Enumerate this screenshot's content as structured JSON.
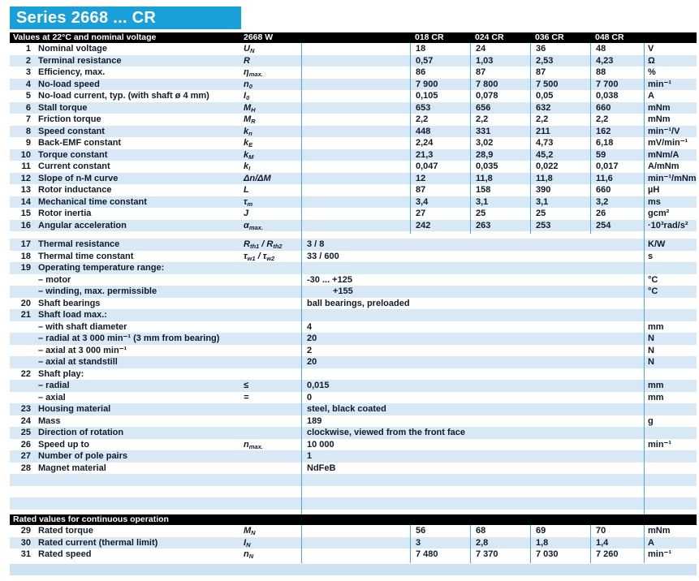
{
  "title": "Series 2668 ... CR",
  "colors": {
    "accent_blue": "#1aa0d8",
    "row_shade_blue": "#d9e8f5",
    "separator_line_blue": "#4aa9d9",
    "section_bar_black": "#000000"
  },
  "header": {
    "label": "Values at 22°C and nominal voltage",
    "model": "2668 W",
    "columns": [
      "018 CR",
      "024 CR",
      "036 CR",
      "048 CR"
    ]
  },
  "rows_electrical": [
    {
      "num": "1",
      "label": "Nominal voltage",
      "symbol": [
        {
          "t": "U"
        },
        {
          "t": "N",
          "sub": true
        }
      ],
      "values": [
        "18",
        "24",
        "36",
        "48"
      ],
      "unit": "V"
    },
    {
      "num": "2",
      "label": "Terminal resistance",
      "symbol": [
        {
          "t": "R"
        }
      ],
      "values": [
        "0,57",
        "1,03",
        "2,53",
        "4,23"
      ],
      "unit": "Ω"
    },
    {
      "num": "3",
      "label": "Efficiency, max.",
      "symbol": [
        {
          "t": "η"
        },
        {
          "t": "max.",
          "sub": true
        }
      ],
      "values": [
        "86",
        "87",
        "87",
        "88"
      ],
      "unit": "%"
    },
    {
      "num": "4",
      "label": "No-load speed",
      "symbol": [
        {
          "t": "n"
        },
        {
          "t": "0",
          "sub": true
        }
      ],
      "values": [
        "7 900",
        "7 800",
        "7 500",
        "7 700"
      ],
      "unit": "min⁻¹"
    },
    {
      "num": "5",
      "label": "No-load current, typ. (with shaft ø 4 mm)",
      "symbol": [
        {
          "t": "I"
        },
        {
          "t": "0",
          "sub": true
        }
      ],
      "values": [
        "0,105",
        "0,078",
        "0,05",
        "0,038"
      ],
      "unit": "A"
    },
    {
      "num": "6",
      "label": "Stall torque",
      "symbol": [
        {
          "t": "M"
        },
        {
          "t": "H",
          "sub": true
        }
      ],
      "values": [
        "653",
        "656",
        "632",
        "660"
      ],
      "unit": "mNm"
    },
    {
      "num": "7",
      "label": "Friction torque",
      "symbol": [
        {
          "t": "M"
        },
        {
          "t": "R",
          "sub": true
        }
      ],
      "values": [
        "2,2",
        "2,2",
        "2,2",
        "2,2"
      ],
      "unit": "mNm"
    },
    {
      "num": "8",
      "label": "Speed constant",
      "symbol": [
        {
          "t": "k"
        },
        {
          "t": "n",
          "sub": true
        }
      ],
      "values": [
        "448",
        "331",
        "211",
        "162"
      ],
      "unit": "min⁻¹/V"
    },
    {
      "num": "9",
      "label": "Back-EMF constant",
      "symbol": [
        {
          "t": "k"
        },
        {
          "t": "E",
          "sub": true
        }
      ],
      "values": [
        "2,24",
        "3,02",
        "4,73",
        "6,18"
      ],
      "unit": "mV/min⁻¹"
    },
    {
      "num": "10",
      "label": "Torque constant",
      "symbol": [
        {
          "t": "k"
        },
        {
          "t": "M",
          "sub": true
        }
      ],
      "values": [
        "21,3",
        "28,9",
        "45,2",
        "59"
      ],
      "unit": "mNm/A"
    },
    {
      "num": "11",
      "label": "Current constant",
      "symbol": [
        {
          "t": "k"
        },
        {
          "t": "I",
          "sub": true
        }
      ],
      "values": [
        "0,047",
        "0,035",
        "0,022",
        "0,017"
      ],
      "unit": "A/mNm"
    },
    {
      "num": "12",
      "label": "Slope of n-M curve",
      "symbol": [
        {
          "t": "Δn/ΔM"
        }
      ],
      "values": [
        "12",
        "11,8",
        "11,8",
        "11,6"
      ],
      "unit": "min⁻¹/mNm"
    },
    {
      "num": "13",
      "label": "Rotor inductance",
      "symbol": [
        {
          "t": "L"
        }
      ],
      "values": [
        "87",
        "158",
        "390",
        "660"
      ],
      "unit": "µH"
    },
    {
      "num": "14",
      "label": "Mechanical time constant",
      "symbol": [
        {
          "t": "τ"
        },
        {
          "t": "m",
          "sub": true
        }
      ],
      "values": [
        "3,4",
        "3,1",
        "3,1",
        "3,2"
      ],
      "unit": "ms"
    },
    {
      "num": "15",
      "label": "Rotor inertia",
      "symbol": [
        {
          "t": "J"
        }
      ],
      "values": [
        "27",
        "25",
        "25",
        "26"
      ],
      "unit": "gcm²"
    },
    {
      "num": "16",
      "label": "Angular acceleration",
      "symbol": [
        {
          "t": "α"
        },
        {
          "t": "max.",
          "sub": true
        }
      ],
      "values": [
        "242",
        "263",
        "253",
        "254"
      ],
      "unit": "·10³rad/s²"
    }
  ],
  "rows_general": [
    {
      "num": "17",
      "label": "Thermal resistance",
      "symbol": [
        {
          "t": "R"
        },
        {
          "t": "th1",
          "sub": true
        },
        {
          "t": " / "
        },
        {
          "t": "R"
        },
        {
          "t": "th2",
          "sub": true
        }
      ],
      "value": "3 / 8",
      "unit": "K/W"
    },
    {
      "num": "18",
      "label": "Thermal time constant",
      "symbol": [
        {
          "t": "τ"
        },
        {
          "t": "w1",
          "sub": true
        },
        {
          "t": " / "
        },
        {
          "t": "τ"
        },
        {
          "t": "w2",
          "sub": true
        }
      ],
      "value": "33 / 600",
      "unit": "s"
    },
    {
      "num": "19",
      "label": "Operating temperature range:",
      "value": "",
      "unit": ""
    },
    {
      "num": "",
      "label": "– motor",
      "value": "-30 ... +125",
      "unit": "°C"
    },
    {
      "num": "",
      "label": "– winding, max. permissible",
      "value": "+155",
      "unit": "°C",
      "indent": true
    },
    {
      "num": "20",
      "label": "Shaft bearings",
      "value": "ball bearings, preloaded",
      "unit": ""
    },
    {
      "num": "21",
      "label": "Shaft load max.:",
      "value": "",
      "unit": ""
    },
    {
      "num": "",
      "label": "– with shaft diameter",
      "value": "4",
      "unit": "mm"
    },
    {
      "num": "",
      "label": "– radial at 3 000 min⁻¹ (3 mm from bearing)",
      "value": "20",
      "unit": "N"
    },
    {
      "num": "",
      "label": "– axial at 3 000 min⁻¹",
      "value": "2",
      "unit": "N"
    },
    {
      "num": "",
      "label": "– axial at standstill",
      "value": "20",
      "unit": "N"
    },
    {
      "num": "22",
      "label": "Shaft play:",
      "value": "",
      "unit": ""
    },
    {
      "num": "",
      "label": "– radial",
      "symbol": [
        {
          "t": "≤"
        }
      ],
      "value": "0,015",
      "unit": "mm"
    },
    {
      "num": "",
      "label": "– axial",
      "symbol": [
        {
          "t": "="
        }
      ],
      "value": "0",
      "unit": "mm"
    },
    {
      "num": "23",
      "label": "Housing material",
      "value": "steel, black coated",
      "unit": ""
    },
    {
      "num": "24",
      "label": "Mass",
      "value": "189",
      "unit": "g"
    },
    {
      "num": "25",
      "label": "Direction of rotation",
      "value": "clockwise, viewed from the front face",
      "unit": ""
    },
    {
      "num": "26",
      "label": "Speed up to",
      "symbol": [
        {
          "t": "n"
        },
        {
          "t": "max.",
          "sub": true
        }
      ],
      "value": "10 000",
      "unit": "min⁻¹"
    },
    {
      "num": "27",
      "label": "Number of pole pairs",
      "value": "1",
      "unit": ""
    },
    {
      "num": "28",
      "label": "Magnet material",
      "value": "NdFeB",
      "unit": ""
    }
  ],
  "rated": {
    "header": "Rated values for continuous operation",
    "rows": [
      {
        "num": "29",
        "label": "Rated torque",
        "symbol": [
          {
            "t": "M"
          },
          {
            "t": "N",
            "sub": true
          }
        ],
        "values": [
          "56",
          "68",
          "69",
          "70"
        ],
        "unit": "mNm"
      },
      {
        "num": "30",
        "label": "Rated current (thermal limit)",
        "symbol": [
          {
            "t": "I"
          },
          {
            "t": "N",
            "sub": true
          }
        ],
        "values": [
          "3",
          "2,8",
          "1,8",
          "1,4"
        ],
        "unit": "A"
      },
      {
        "num": "31",
        "label": "Rated speed",
        "symbol": [
          {
            "t": "n"
          },
          {
            "t": "N",
            "sub": true
          }
        ],
        "values": [
          "7 480",
          "7 370",
          "7 030",
          "7 260"
        ],
        "unit": "min⁻¹"
      }
    ]
  }
}
